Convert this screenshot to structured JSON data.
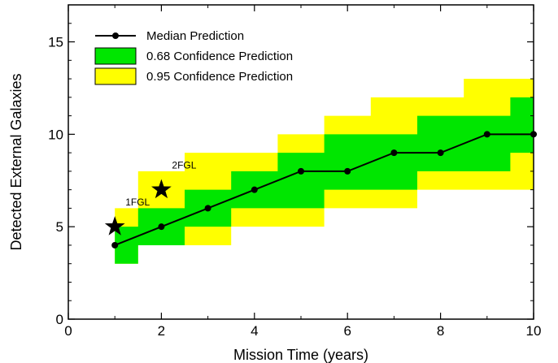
{
  "chart_data": {
    "type": "area",
    "title": "",
    "xlabel": "Mission Time (years)",
    "ylabel": "Detected External Galaxies",
    "xlim": [
      0,
      10
    ],
    "ylim": [
      0,
      17
    ],
    "xticks": [
      0,
      2,
      4,
      6,
      8,
      10
    ],
    "yticks": [
      0,
      5,
      10,
      15
    ],
    "grid": false,
    "legend_position": "top-left",
    "x": [
      1,
      2,
      3,
      4,
      5,
      6,
      7,
      8,
      9,
      10
    ],
    "series": [
      {
        "name": "Median Prediction",
        "kind": "line-with-markers",
        "color": "#000000",
        "values": [
          4,
          5,
          6,
          7,
          8,
          8,
          9,
          9,
          10,
          10
        ]
      },
      {
        "name": "0.68 Confidence Prediction",
        "kind": "band",
        "color": "#00e600",
        "lower": [
          3,
          4,
          5,
          6,
          6,
          7,
          7,
          8,
          8,
          9
        ],
        "upper": [
          5,
          6,
          7,
          8,
          9,
          10,
          10,
          11,
          11,
          12
        ]
      },
      {
        "name": "0.95 Confidence Prediction",
        "kind": "band",
        "color": "#ffff00",
        "lower": [
          3,
          4,
          4,
          5,
          5,
          6,
          6,
          7,
          7,
          7
        ],
        "upper": [
          6,
          8,
          9,
          9,
          10,
          11,
          12,
          12,
          13,
          13
        ]
      }
    ],
    "annotations": [
      {
        "label": "1FGL",
        "x": 1,
        "y": 5,
        "marker": "star"
      },
      {
        "label": "2FGL",
        "x": 2,
        "y": 7,
        "marker": "star"
      }
    ]
  }
}
